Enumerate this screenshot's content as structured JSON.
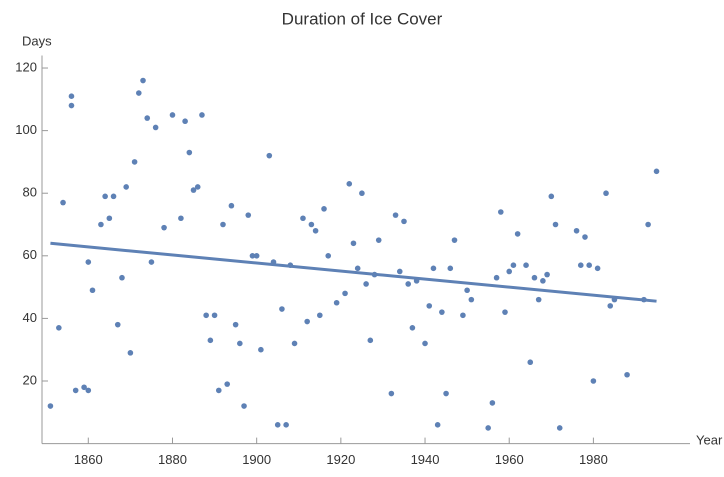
{
  "chart_data": {
    "type": "scatter",
    "title": "Duration of Ice Cover",
    "x_label": "Year",
    "y_label": "Days",
    "xlim": [
      1849,
      2002
    ],
    "ylim": [
      0,
      124
    ],
    "xticks": [
      1860,
      1880,
      1900,
      1920,
      1940,
      1960,
      1980
    ],
    "yticks": [
      20,
      40,
      60,
      80,
      100,
      120
    ],
    "color": "#5e81b5",
    "x": [
      1851,
      1853,
      1854,
      1856,
      1856,
      1857,
      1859,
      1860,
      1860,
      1861,
      1863,
      1864,
      1865,
      1866,
      1867,
      1868,
      1869,
      1870,
      1871,
      1872,
      1873,
      1874,
      1875,
      1876,
      1878,
      1880,
      1882,
      1883,
      1884,
      1885,
      1886,
      1887,
      1888,
      1889,
      1890,
      1891,
      1892,
      1893,
      1894,
      1895,
      1896,
      1897,
      1898,
      1899,
      1900,
      1901,
      1903,
      1904,
      1905,
      1906,
      1907,
      1908,
      1909,
      1911,
      1912,
      1913,
      1914,
      1915,
      1916,
      1917,
      1919,
      1921,
      1922,
      1923,
      1924,
      1925,
      1926,
      1927,
      1928,
      1929,
      1932,
      1933,
      1934,
      1935,
      1936,
      1937,
      1938,
      1940,
      1941,
      1942,
      1943,
      1944,
      1945,
      1946,
      1947,
      1949,
      1950,
      1951,
      1955,
      1956,
      1957,
      1958,
      1959,
      1960,
      1961,
      1962,
      1964,
      1965,
      1966,
      1967,
      1968,
      1969,
      1970,
      1971,
      1972,
      1976,
      1977,
      1978,
      1979,
      1980,
      1981,
      1983,
      1984,
      1985,
      1988,
      1992,
      1993,
      1995
    ],
    "y": [
      12,
      37,
      77,
      108,
      111,
      17,
      18,
      17,
      58,
      49,
      70,
      79,
      72,
      79,
      38,
      53,
      82,
      29,
      90,
      112,
      116,
      104,
      58,
      101,
      69,
      105,
      72,
      103,
      93,
      81,
      82,
      105,
      41,
      33,
      41,
      17,
      70,
      19,
      76,
      38,
      32,
      12,
      73,
      60,
      60,
      30,
      92,
      58,
      6,
      43,
      6,
      57,
      32,
      72,
      39,
      70,
      68,
      41,
      75,
      60,
      45,
      48,
      83,
      64,
      56,
      80,
      51,
      33,
      54,
      65,
      16,
      73,
      55,
      71,
      51,
      37,
      52,
      32,
      44,
      56,
      6,
      42,
      16,
      56,
      65,
      41,
      49,
      46,
      5,
      13,
      53,
      74,
      42,
      55,
      57,
      67,
      57,
      26,
      53,
      46,
      52,
      54,
      79,
      70,
      5,
      68,
      57,
      66,
      57,
      20,
      56,
      80,
      44,
      46,
      22,
      46,
      70,
      87
    ],
    "trend": {
      "x": [
        1851,
        1995
      ],
      "y": [
        64,
        45.5
      ]
    }
  }
}
